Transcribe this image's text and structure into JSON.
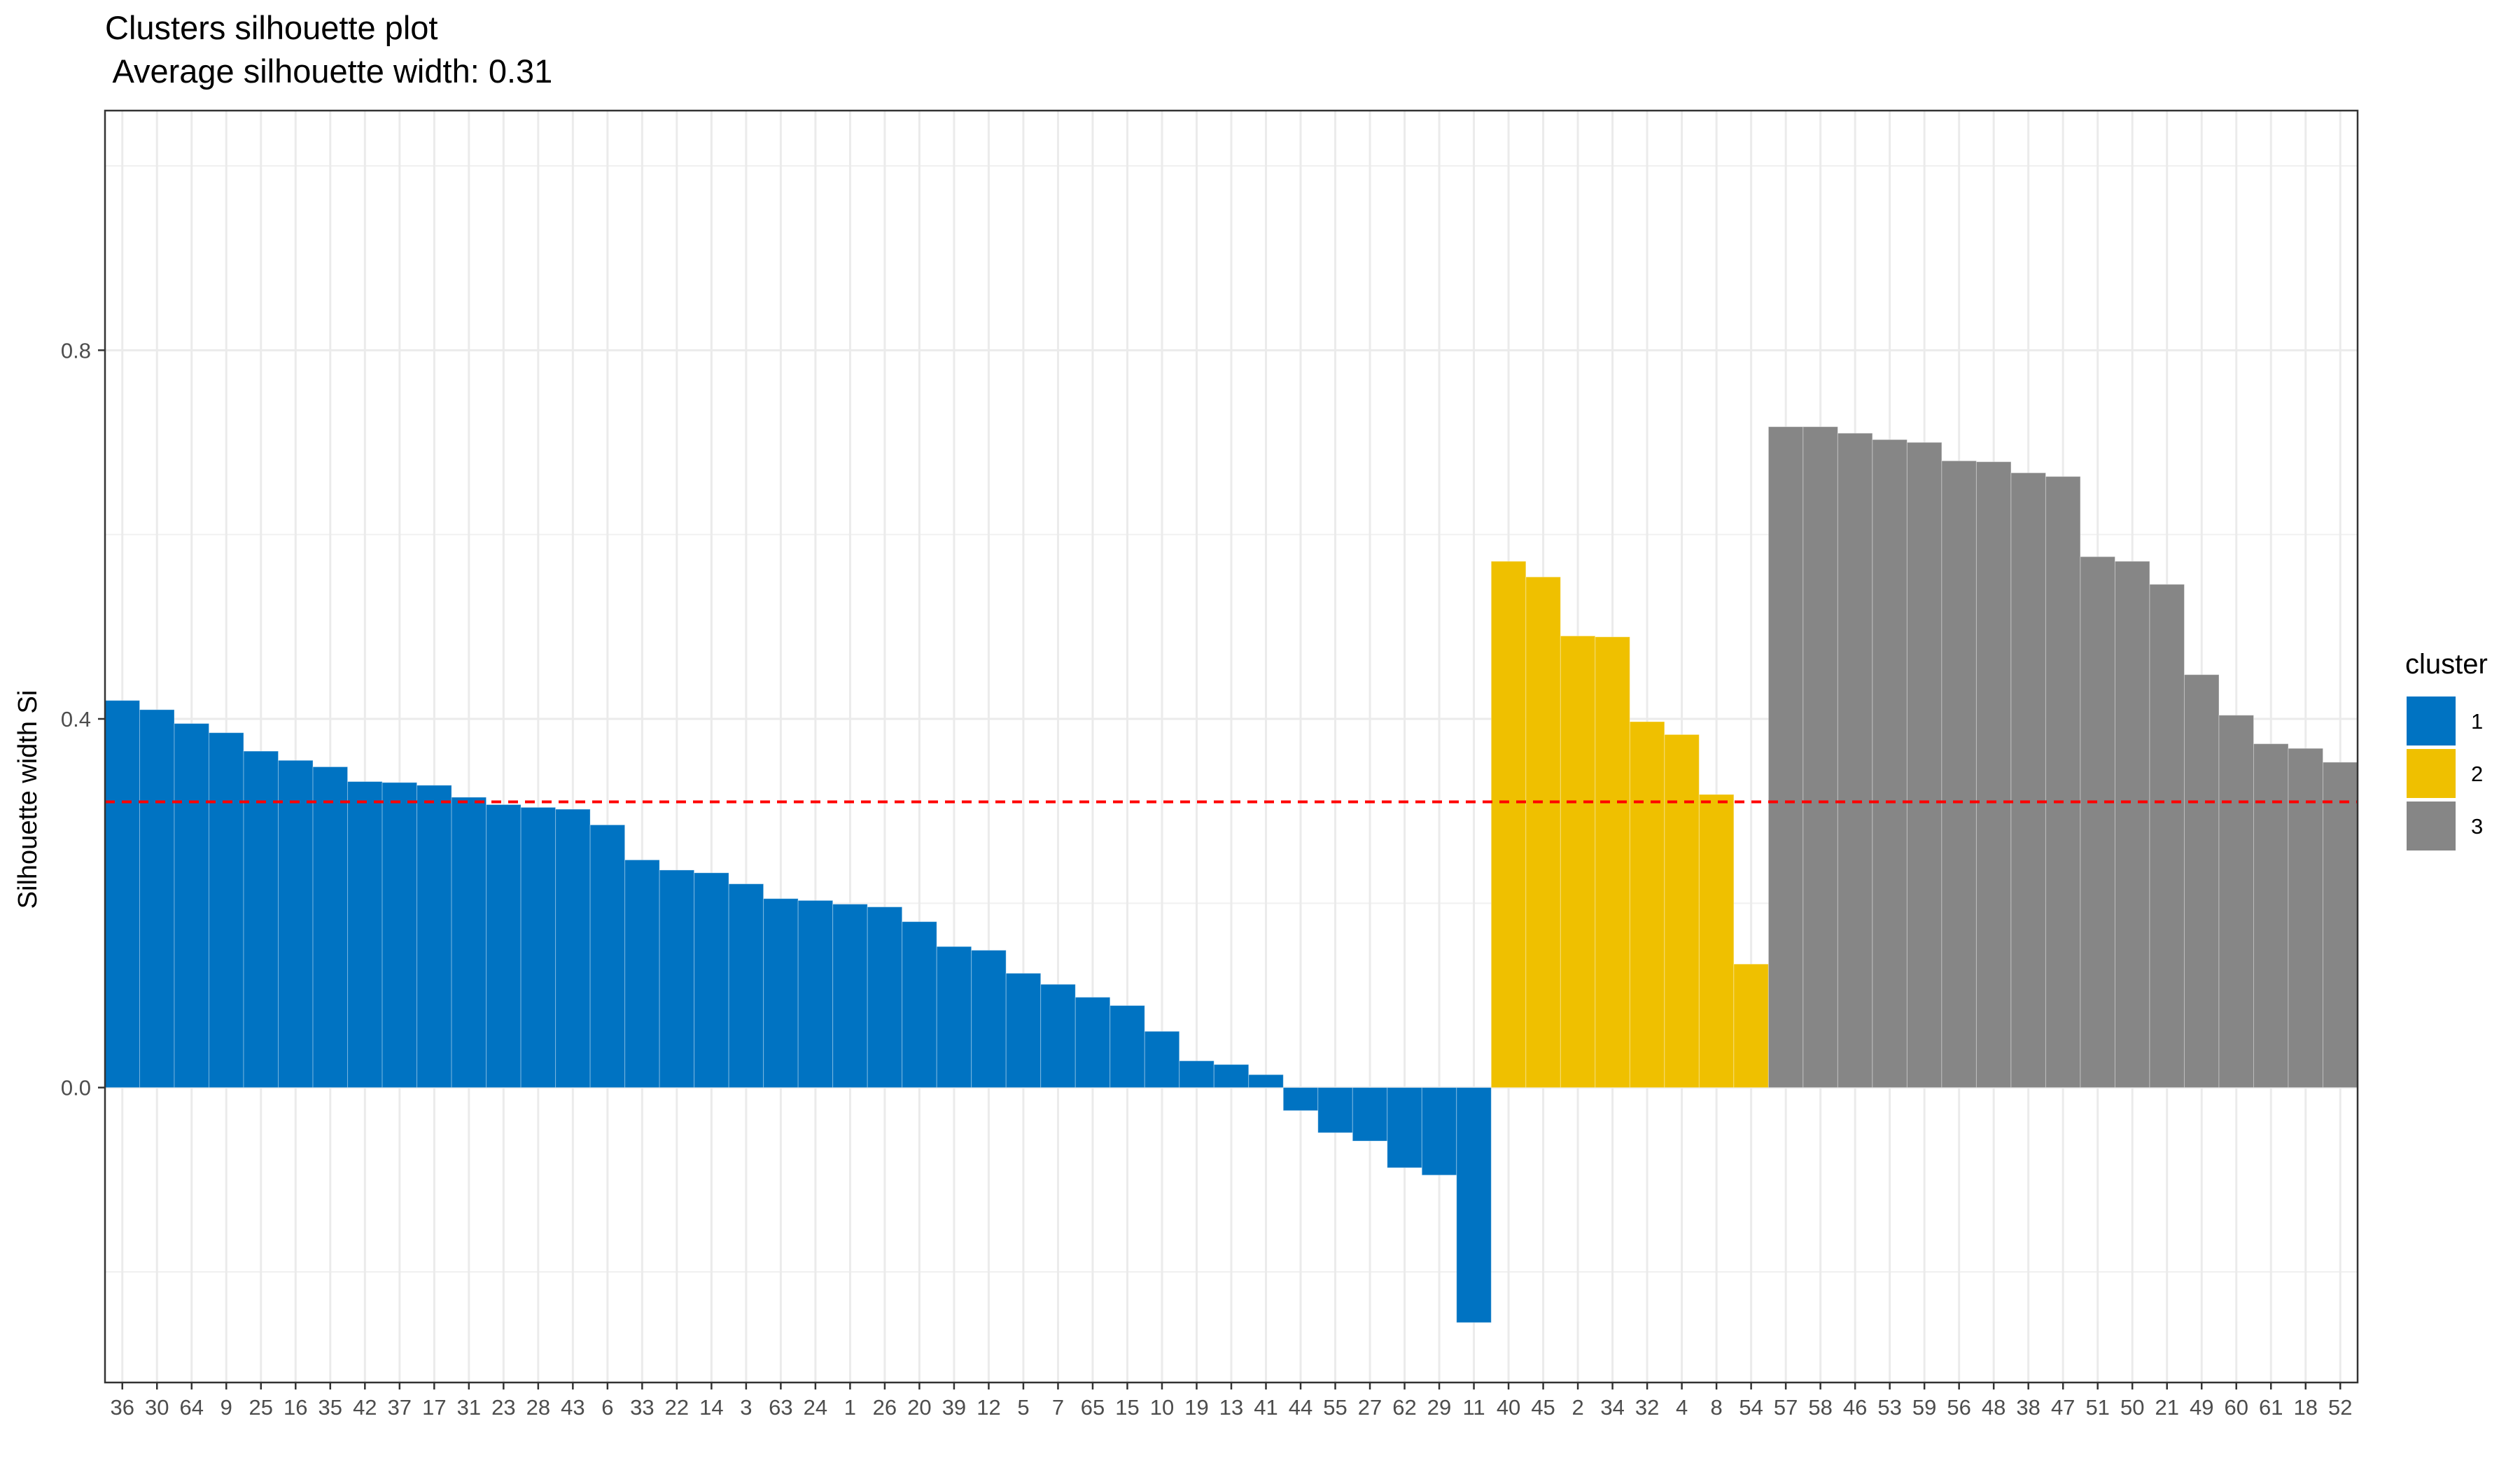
{
  "chart_data": {
    "type": "bar",
    "title": "Clusters silhouette plot",
    "subtitle": " Average silhouette width: 0.31",
    "xlabel": "",
    "ylabel": "Silhouette width Si",
    "ylim": [
      -0.32,
      1.06
    ],
    "y_ticks": [
      0.0,
      0.4,
      0.8
    ],
    "y_tick_labels": [
      "0.0",
      "0.4",
      "0.8"
    ],
    "grid": true,
    "average_line": {
      "value": 0.31,
      "color": "#ff0000",
      "style": "dashed"
    },
    "legend": {
      "title": "cluster",
      "position": "right",
      "items": [
        {
          "label": "1",
          "color": "#0073c2"
        },
        {
          "label": "2",
          "color": "#efc000"
        },
        {
          "label": "3",
          "color": "#868686"
        }
      ]
    },
    "categories": [
      "36",
      "30",
      "64",
      "9",
      "25",
      "16",
      "35",
      "42",
      "37",
      "17",
      "31",
      "23",
      "28",
      "43",
      "6",
      "33",
      "22",
      "14",
      "3",
      "63",
      "24",
      "1",
      "26",
      "20",
      "39",
      "12",
      "5",
      "7",
      "65",
      "15",
      "10",
      "19",
      "13",
      "41",
      "44",
      "55",
      "27",
      "62",
      "29",
      "11",
      "40",
      "45",
      "2",
      "34",
      "32",
      "4",
      "8",
      "54",
      "57",
      "58",
      "46",
      "53",
      "59",
      "56",
      "48",
      "38",
      "47",
      "51",
      "50",
      "21",
      "49",
      "60",
      "61",
      "18",
      "52"
    ],
    "values": [
      0.42,
      0.41,
      0.395,
      0.385,
      0.365,
      0.355,
      0.348,
      0.332,
      0.331,
      0.328,
      0.315,
      0.307,
      0.304,
      0.302,
      0.285,
      0.247,
      0.236,
      0.233,
      0.221,
      0.205,
      0.203,
      0.199,
      0.196,
      0.18,
      0.153,
      0.149,
      0.124,
      0.112,
      0.098,
      0.089,
      0.061,
      0.029,
      0.025,
      0.014,
      -0.025,
      -0.049,
      -0.058,
      -0.087,
      -0.095,
      -0.255,
      0.571,
      0.554,
      0.49,
      0.489,
      0.397,
      0.383,
      0.318,
      0.134,
      0.717,
      0.717,
      0.71,
      0.703,
      0.7,
      0.68,
      0.679,
      0.667,
      0.663,
      0.576,
      0.571,
      0.546,
      0.448,
      0.404,
      0.373,
      0.368,
      0.353
    ],
    "clusters": [
      "1",
      "1",
      "1",
      "1",
      "1",
      "1",
      "1",
      "1",
      "1",
      "1",
      "1",
      "1",
      "1",
      "1",
      "1",
      "1",
      "1",
      "1",
      "1",
      "1",
      "1",
      "1",
      "1",
      "1",
      "1",
      "1",
      "1",
      "1",
      "1",
      "1",
      "1",
      "1",
      "1",
      "1",
      "1",
      "1",
      "1",
      "1",
      "1",
      "1",
      "2",
      "2",
      "2",
      "2",
      "2",
      "2",
      "2",
      "2",
      "3",
      "3",
      "3",
      "3",
      "3",
      "3",
      "3",
      "3",
      "3",
      "3",
      "3",
      "3",
      "3",
      "3",
      "3",
      "3",
      "3"
    ]
  }
}
